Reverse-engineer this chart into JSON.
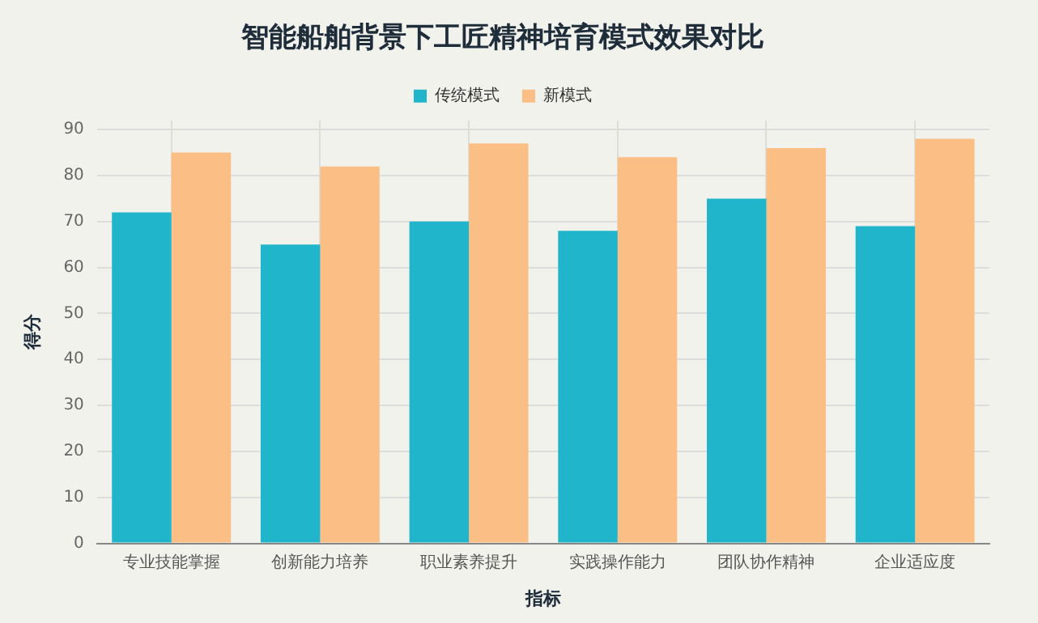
{
  "chart_data": {
    "type": "bar",
    "title": "智能船舶背景下工匠精神培育模式效果对比",
    "xlabel": "指标",
    "ylabel": "得分",
    "categories": [
      "专业技能掌握",
      "创新能力培养",
      "职业素养提升",
      "实践操作能力",
      "团队协作精神",
      "企业适应度"
    ],
    "series": [
      {
        "name": "传统模式",
        "color": "#21b5cb",
        "values": [
          72,
          65,
          70,
          68,
          75,
          69
        ]
      },
      {
        "name": "新模式",
        "color": "#fbbf85",
        "values": [
          85,
          82,
          87,
          84,
          86,
          88
        ]
      }
    ],
    "ylim": [
      0,
      92
    ],
    "yticks": [
      0,
      10,
      20,
      30,
      40,
      50,
      60,
      70,
      80,
      90
    ],
    "grid": true,
    "legend": "top"
  }
}
